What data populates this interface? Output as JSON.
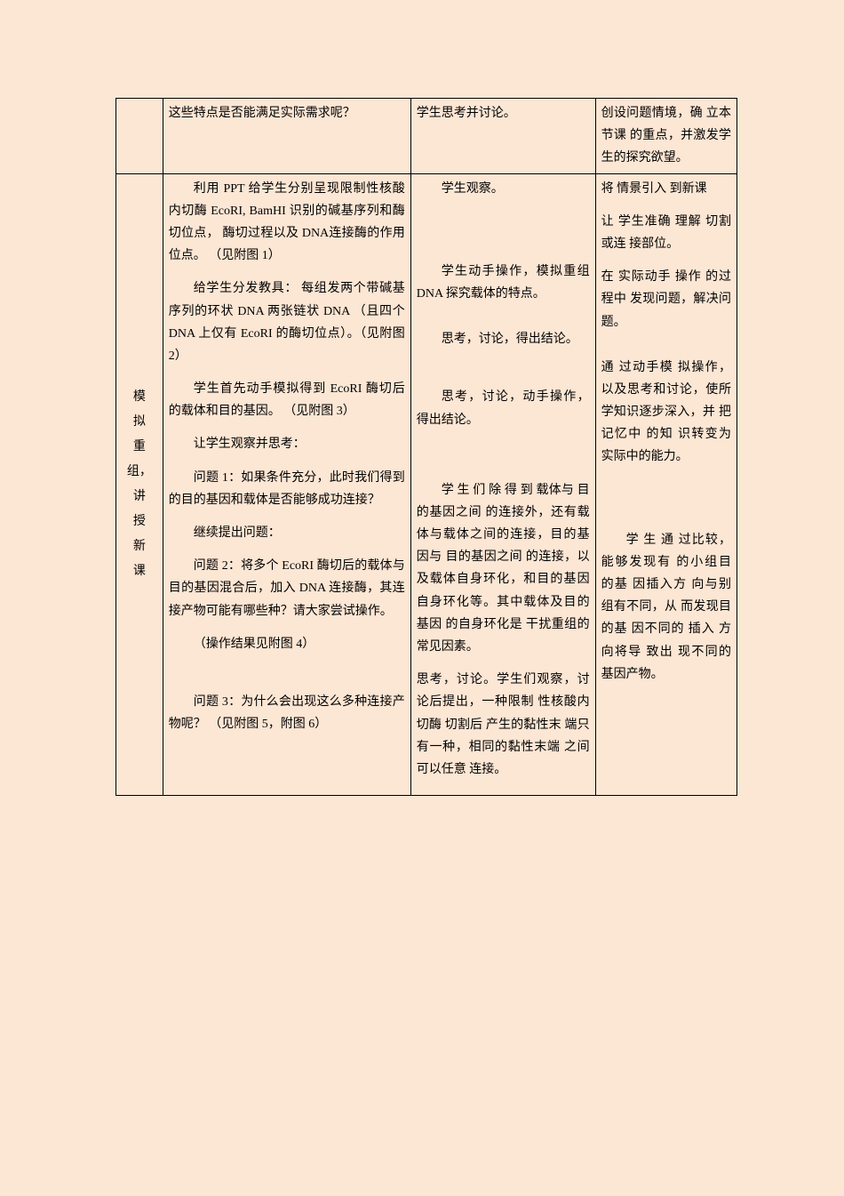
{
  "row1": {
    "stage": "",
    "teacher": "这些特点是否能满足实际需求呢？",
    "student": "学生思考并讨论。",
    "intent": "创设问题情境，确 立本节课 的重点，并激发学生的探究欲望。"
  },
  "row2": {
    "stage_chars": [
      "模",
      "拟",
      "重",
      "组，",
      "讲",
      "授",
      "新",
      "课"
    ],
    "teacher": {
      "p1": "利用 PPT 给学生分别呈现限制性核酸内切酶 EcoRI, BamHI 识别的碱基序列和酶切位点， 酶切过程以及 DNA连接酶的作用位点。 （见附图 1）",
      "p2": "给学生分发教具： 每组发两个带碱基序列的环状 DNA 两张链状 DNA （且四个 DNA 上仅有 EcoRI 的酶切位点）。（见附图 2）",
      "p3": "学生首先动手模拟得到 EcoRI 酶切后的载体和目的基因。 （见附图 3）",
      "p4": "让学生观察并思考：",
      "p5": "问题 1：如果条件充分，此时我们得到的目的基因和载体是否能够成功连接？",
      "p6": "继续提出问题：",
      "p7": "问题 2：将多个 EcoRI 酶切后的载体与目的基因混合后，加入 DNA 连接酶，其连接产物可能有哪些种？请大家尝试操作。",
      "p8": "（操作结果见附图 4）",
      "p9": "问题 3：为什么会出现这么多种连接产物呢？ （见附图 5，附图 6）"
    },
    "student": {
      "s1": "学生观察。",
      "s2": "学生动手操作，模拟重组 DNA 探究载体的特点。",
      "s3": "思考，讨论，得出结论。",
      "s4": "思考，讨论，动手操作，得出结论。",
      "s5": "学 生 们 除 得 到 载体与 目的基因之间 的连接外，还有载体与载体之间的连接，目的基因与 目的基因之间 的连接，以及载体自身环化，和目的基因自身环化等。其中载体及目的基因 的自身环化是 干扰重组的常见因素。",
      "s6": "思考，讨论。学生们观察，讨论后提出，一种限制 性核酸内切酶 切割后 产生的黏性末 端只有一种，相同的黏性末端 之间可以任意 连接。"
    },
    "intent": {
      "i1": "将 情景引入 到新课",
      "i2": "让 学生准确 理解 切割或连 接部位。",
      "i3": "在 实际动手 操作 的过程中 发现问题，解决问题。",
      "i4": "通 过动手模 拟操作，以及思考和讨论，使所学知识逐步深入，并 把记忆中 的知 识转变为 实际中的能力。",
      "i5": "学 生 通 过比较，能够发现有 的小组目 的基 因插入方 向与别组有不同，从 而发现目 的基 因不同的 插入 方向将导 致出 现不同的 基因产物。"
    }
  }
}
